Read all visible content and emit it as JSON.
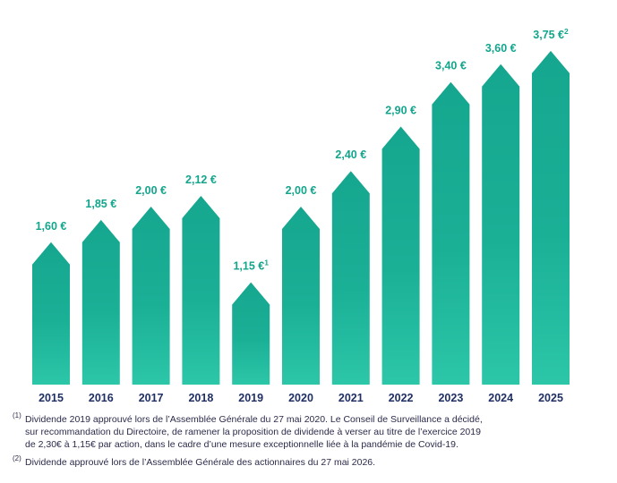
{
  "chart_data": {
    "type": "bar",
    "categories": [
      "2015",
      "2016",
      "2017",
      "2018",
      "2019",
      "2020",
      "2021",
      "2022",
      "2023",
      "2024",
      "2025"
    ],
    "values": [
      1.6,
      1.85,
      2.0,
      2.12,
      1.15,
      2.0,
      2.4,
      2.9,
      3.4,
      3.6,
      3.75
    ],
    "data_labels": [
      "1,60 €",
      "1,85 €",
      "2,00 €",
      "2,12  €",
      "1,15 €",
      "2,00 €",
      "2,40 €",
      "2,90 €",
      "3,40 €",
      "3,60 €",
      "3,75 €"
    ],
    "label_footnotes": [
      "",
      "",
      "",
      "",
      "1",
      "",
      "",
      "",
      "",
      "",
      "2"
    ],
    "title": "",
    "xlabel": "",
    "ylabel": "",
    "ylim": [
      0,
      4.0
    ],
    "grid": false,
    "colors": {
      "bar": "#1aae96",
      "bar_light": "#25c4a7",
      "label": "#14a58d",
      "tick": "#1f2f63"
    }
  },
  "footnotes": [
    {
      "marker": "(1)",
      "lines": [
        "Dividende 2019 approuvé lors de l’Assemblée Générale du 27 mai 2020. Le Conseil de Surveillance a décidé,",
        "sur recommandation du Directoire, de ramener la proposition de dividende à verser au titre de l’exercice 2019",
        "de 2,30€ à 1,15€ par action, dans le cadre d’une mesure exceptionnelle liée à la pandémie de Covid-19."
      ]
    },
    {
      "marker": "(2)",
      "lines": [
        "Dividende approuvé lors de l’Assemblée Générale des actionnaires du 27 mai 2026."
      ]
    }
  ]
}
